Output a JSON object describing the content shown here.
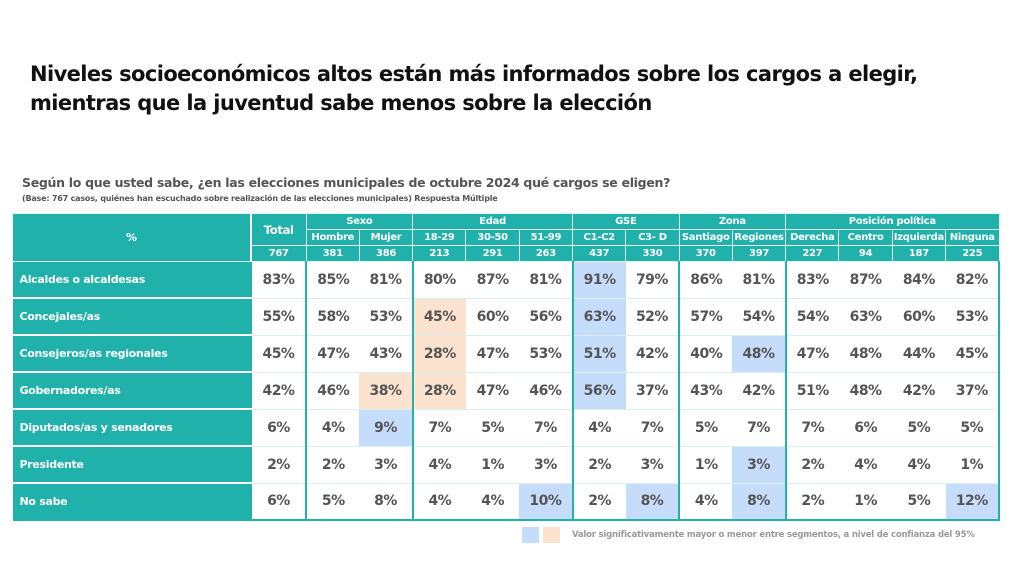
{
  "title_line1": "Niveles socioeconómicos altos están más informados sobre los cargos a elegir,",
  "title_line2": "mientras que la juventud sabe menos sobre la elección",
  "question": "Según lo que usted sabe, ¿en las elecciones municipales de octubre 2024 qué cargos se eligen?",
  "base_note": "(Base: 767 casos, quiénes han escuchado sobre realización de las elecciones municipales)  Respuesta Múltiple",
  "table": {
    "corner_label": "%",
    "total_label": "Total",
    "total_n": "767",
    "groups": [
      {
        "label": "Sexo",
        "columns": [
          {
            "label": "Hombre",
            "n": "381"
          },
          {
            "label": "Mujer",
            "n": "386"
          }
        ]
      },
      {
        "label": "Edad",
        "columns": [
          {
            "label": "18-29",
            "n": "213"
          },
          {
            "label": "30-50",
            "n": "291"
          },
          {
            "label": "51-99",
            "n": "263"
          }
        ]
      },
      {
        "label": "GSE",
        "columns": [
          {
            "label": "C1-C2",
            "n": "437"
          },
          {
            "label": "C3- D",
            "n": "330"
          }
        ]
      },
      {
        "label": "Zona",
        "columns": [
          {
            "label": "Santiago",
            "n": "370"
          },
          {
            "label": "Regiones",
            "n": "397"
          }
        ]
      },
      {
        "label": "Posición política",
        "columns": [
          {
            "label": "Derecha",
            "n": "227"
          },
          {
            "label": "Centro",
            "n": "94"
          },
          {
            "label": "Izquierda",
            "n": "187"
          },
          {
            "label": "Ninguna",
            "n": "225"
          }
        ]
      }
    ],
    "rows": [
      {
        "label": "Alcaldes o alcaldesas",
        "values": [
          "83%",
          "85%",
          "81%",
          "80%",
          "87%",
          "81%",
          "91%",
          "79%",
          "86%",
          "81%",
          "83%",
          "87%",
          "84%",
          "82%"
        ],
        "highlight": [
          "",
          "",
          "",
          "",
          "",
          "",
          "b",
          "",
          "",
          "",
          "",
          "",
          "",
          ""
        ]
      },
      {
        "label": "Concejales/as",
        "values": [
          "55%",
          "58%",
          "53%",
          "45%",
          "60%",
          "56%",
          "63%",
          "52%",
          "57%",
          "54%",
          "54%",
          "63%",
          "60%",
          "53%"
        ],
        "highlight": [
          "",
          "",
          "",
          "o",
          "",
          "",
          "b",
          "",
          "",
          "",
          "",
          "",
          "",
          ""
        ]
      },
      {
        "label": "Consejeros/as regionales",
        "values": [
          "45%",
          "47%",
          "43%",
          "28%",
          "47%",
          "53%",
          "51%",
          "42%",
          "40%",
          "48%",
          "47%",
          "48%",
          "44%",
          "45%"
        ],
        "highlight": [
          "",
          "",
          "",
          "o",
          "",
          "",
          "b",
          "",
          "",
          "b",
          "",
          "",
          "",
          ""
        ]
      },
      {
        "label": "Gobernadores/as",
        "values": [
          "42%",
          "46%",
          "38%",
          "28%",
          "47%",
          "46%",
          "56%",
          "37%",
          "43%",
          "42%",
          "51%",
          "48%",
          "42%",
          "37%"
        ],
        "highlight": [
          "",
          "",
          "o",
          "o",
          "",
          "",
          "b",
          "",
          "",
          "",
          "",
          "",
          "",
          ""
        ]
      },
      {
        "label": "Diputados/as y senadores",
        "values": [
          "6%",
          "4%",
          "9%",
          "7%",
          "5%",
          "7%",
          "4%",
          "7%",
          "5%",
          "7%",
          "7%",
          "6%",
          "5%",
          "5%"
        ],
        "highlight": [
          "",
          "",
          "b",
          "",
          "",
          "",
          "",
          "",
          "",
          "",
          "",
          "",
          "",
          ""
        ]
      },
      {
        "label": "Presidente",
        "values": [
          "2%",
          "2%",
          "3%",
          "4%",
          "1%",
          "3%",
          "2%",
          "3%",
          "1%",
          "3%",
          "2%",
          "4%",
          "4%",
          "1%"
        ],
        "highlight": [
          "",
          "",
          "",
          "",
          "",
          "",
          "",
          "",
          "",
          "b",
          "",
          "",
          "",
          ""
        ]
      },
      {
        "label": "No sabe",
        "values": [
          "6%",
          "5%",
          "8%",
          "4%",
          "4%",
          "10%",
          "2%",
          "8%",
          "4%",
          "8%",
          "2%",
          "1%",
          "5%",
          "12%"
        ],
        "highlight": [
          "",
          "",
          "",
          "",
          "",
          "b",
          "",
          "b",
          "",
          "b",
          "",
          "",
          "",
          "b"
        ]
      }
    ]
  },
  "legend": {
    "text": "Valor significativamente mayor o menor entre segmentos, a nivel de confianza del 95%",
    "colors": {
      "higher_blue": "#c6dcfb",
      "lower_orange": "#fbe3cf"
    }
  },
  "colors": {
    "teal": "#20b1ab"
  }
}
